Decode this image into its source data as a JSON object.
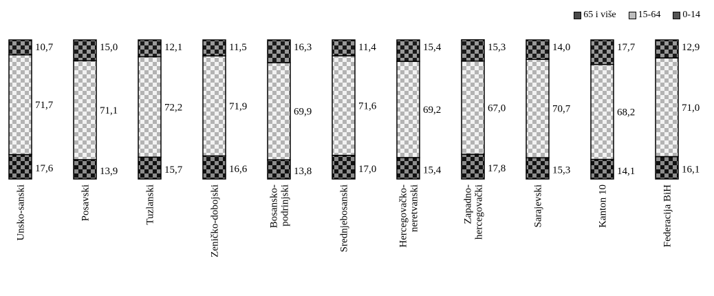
{
  "chart_data": {
    "type": "bar",
    "stacked": "100%",
    "orientation": "vertical",
    "categories": [
      "Unsko-sanski",
      "Posavski",
      "Tuzlanski",
      "Zeničko-dobojski",
      "Bosansko-podrinjski",
      "Srednjebosanski",
      "Hercegovačko-neretvanski",
      "Zapadno-hercegovački",
      "Sarajevski",
      "Kanton 10",
      "Federacija BiH"
    ],
    "category_lines": [
      [
        "Unsko-sanski"
      ],
      [
        "Posavski"
      ],
      [
        "Tuzlanski"
      ],
      [
        "Zeničko-dobojski"
      ],
      [
        "Bosansko-",
        "podrinjski"
      ],
      [
        "Srednjebosanski"
      ],
      [
        "Hercegovačko-",
        "neretvanski"
      ],
      [
        "Zapadno-",
        "hercegovački"
      ],
      [
        "Sarajevski"
      ],
      [
        "Kanton 10"
      ],
      [
        "Federacija BiH"
      ]
    ],
    "series": [
      {
        "name": "0-14",
        "values": [
          17.6,
          13.9,
          15.7,
          16.6,
          13.8,
          17.0,
          15.4,
          17.8,
          15.3,
          14.1,
          16.1
        ],
        "labels": [
          "17,6",
          "13,9",
          "15,7",
          "16,6",
          "13,8",
          "17,0",
          "15,4",
          "17,8",
          "15,3",
          "14,1",
          "16,1"
        ]
      },
      {
        "name": "15-64",
        "values": [
          71.7,
          71.1,
          72.2,
          71.9,
          69.9,
          71.6,
          69.2,
          67.0,
          70.7,
          68.2,
          71.0
        ],
        "labels": [
          "71,7",
          "71,1",
          "72,2",
          "71,9",
          "69,9",
          "71,6",
          "69,2",
          "67,0",
          "70,7",
          "68,2",
          "71,0"
        ]
      },
      {
        "name": "65 i više",
        "values": [
          10.7,
          15.0,
          12.1,
          11.5,
          16.3,
          11.4,
          15.4,
          15.3,
          14.0,
          17.7,
          12.9
        ],
        "labels": [
          "10,7",
          "15,0",
          "12,1",
          "11,5",
          "16,3",
          "11,4",
          "15,4",
          "15,3",
          "14,0",
          "17,7",
          "12,9"
        ]
      }
    ],
    "legend": [
      "65 i više",
      "15-64",
      "0-14"
    ],
    "legend_position": "top-right",
    "ylim": [
      0,
      100
    ],
    "grid": false,
    "colors": {
      "0-14": "#555555",
      "15-64": "#bdbdbd",
      "65 i više": "#4a4a4a"
    }
  }
}
